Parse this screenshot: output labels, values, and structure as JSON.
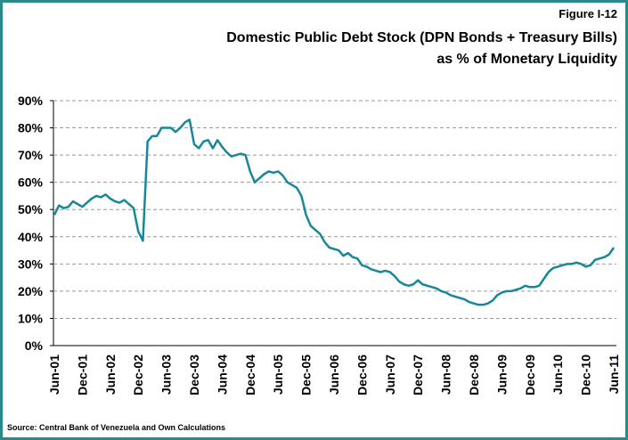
{
  "chart_data": {
    "type": "line",
    "figure_label": "Figure I-12",
    "title": "Domestic Public Debt Stock (DPN Bonds + Treasury Bills)",
    "subtitle": "as % of Monetary Liquidity",
    "source": "Source: Central Bank of Venezuela and Own Calculations",
    "categories": [
      "Jun-01",
      null,
      null,
      null,
      null,
      null,
      "Dec-01",
      null,
      null,
      null,
      null,
      null,
      "Jun-02",
      null,
      null,
      null,
      null,
      null,
      "Dec-02",
      null,
      null,
      null,
      null,
      null,
      "Jun-03",
      null,
      null,
      null,
      null,
      null,
      "Dec-03",
      null,
      null,
      null,
      null,
      null,
      "Jun-04",
      null,
      null,
      null,
      null,
      null,
      "Dec-04",
      null,
      null,
      null,
      null,
      null,
      "Jun-05",
      null,
      null,
      null,
      null,
      null,
      "Dec-05",
      null,
      null,
      null,
      null,
      null,
      "Jun-06",
      null,
      null,
      null,
      null,
      null,
      "Dec-06",
      null,
      null,
      null,
      null,
      null,
      "Jun-07",
      null,
      null,
      null,
      null,
      null,
      "Dec-07",
      null,
      null,
      null,
      null,
      null,
      "Jun-08",
      null,
      null,
      null,
      null,
      null,
      "Dec-08",
      null,
      null,
      null,
      null,
      null,
      "Jun-09",
      null,
      null,
      null,
      null,
      null,
      "Dec-09",
      null,
      null,
      null,
      null,
      null,
      "Jun-10",
      null,
      null,
      null,
      null,
      null,
      "Dec-10",
      null,
      null,
      null,
      null,
      null,
      "Jun-11"
    ],
    "values": [
      48,
      51.5,
      50.5,
      51,
      53,
      52,
      51,
      52.5,
      54,
      55,
      54.5,
      55.5,
      54,
      53,
      52.5,
      53.5,
      52,
      50.5,
      42,
      38.5,
      75,
      77,
      77,
      80,
      80,
      80,
      78.5,
      80,
      82,
      83,
      74,
      72.5,
      75,
      75.5,
      72.5,
      75.5,
      73,
      71,
      69.5,
      70,
      70.5,
      70,
      64,
      60,
      61.5,
      63,
      64,
      63.5,
      64,
      62.5,
      60,
      59,
      58,
      55,
      48,
      44,
      42.5,
      41,
      38,
      36,
      35.5,
      35,
      33,
      34,
      32.5,
      32,
      29.5,
      29,
      28,
      27.5,
      27,
      27.5,
      27,
      25.5,
      23.5,
      22.5,
      22,
      22.5,
      24,
      22.5,
      22,
      21.5,
      21,
      20,
      19.5,
      18.5,
      18,
      17.5,
      17,
      16,
      15.5,
      15,
      15,
      15.5,
      16.5,
      18.5,
      19.5,
      20,
      20,
      20.5,
      21,
      22,
      21.5,
      21.5,
      22,
      24.5,
      27,
      28.5,
      29,
      29.5,
      30,
      30,
      30.5,
      30,
      29,
      29.5,
      31.5,
      32,
      32.5,
      33.5,
      36
    ],
    "color": "#17879a",
    "ylim": [
      0,
      90
    ],
    "yticks": [
      {
        "value": 0,
        "label": "0%"
      },
      {
        "value": 10,
        "label": "10%"
      },
      {
        "value": 20,
        "label": "20%"
      },
      {
        "value": 30,
        "label": "30%"
      },
      {
        "value": 40,
        "label": "40%"
      },
      {
        "value": 50,
        "label": "50%"
      },
      {
        "value": 60,
        "label": "60%"
      },
      {
        "value": 70,
        "label": "70%"
      },
      {
        "value": 80,
        "label": "80%"
      },
      {
        "value": 90,
        "label": "90%"
      }
    ],
    "grid": true
  }
}
